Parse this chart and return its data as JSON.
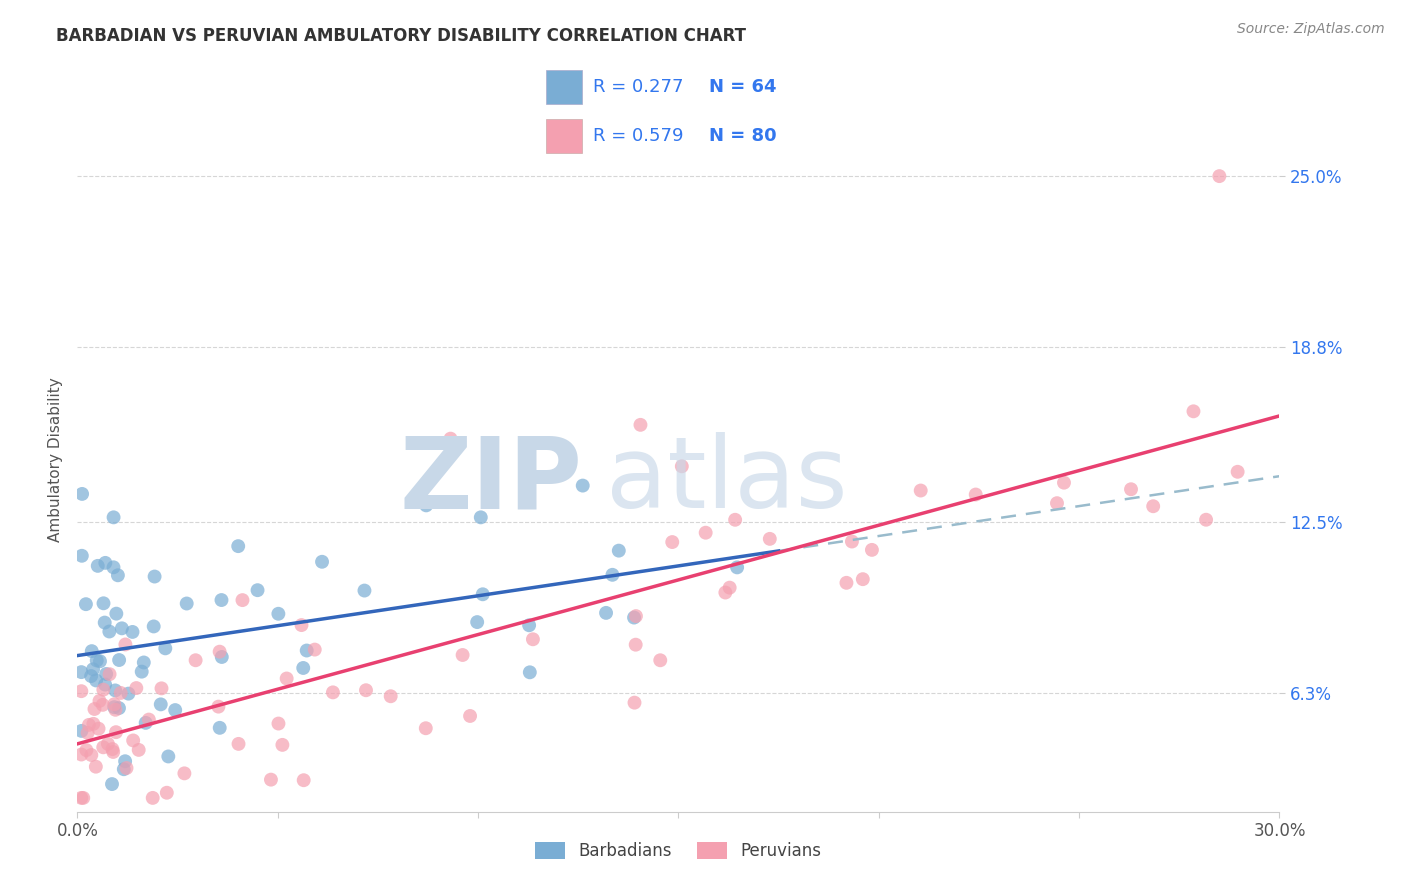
{
  "title": "BARBADIAN VS PERUVIAN AMBULATORY DISABILITY CORRELATION CHART",
  "source": "Source: ZipAtlas.com",
  "ylabel_label": "Ambulatory Disability",
  "barbadian_color": "#7aadd4",
  "peruvian_color": "#f4a0b0",
  "barbadian_line_color": "#3366bb",
  "peruvian_line_color": "#e84070",
  "dashed_line_color": "#99bbcc",
  "legend_text_color": "#3377ee",
  "watermark_color": "#c8d8e8",
  "background_color": "#ffffff",
  "grid_color": "#cccccc",
  "xmin": 0.0,
  "xmax": 0.3,
  "ymin": 0.02,
  "ymax": 0.275,
  "ytick_vals": [
    0.063,
    0.125,
    0.188,
    0.25
  ],
  "ytick_labels": [
    "6.3%",
    "12.5%",
    "18.8%",
    "25.0%"
  ],
  "xtick_vals": [
    0.0,
    0.3
  ],
  "xtick_labels": [
    "0.0%",
    "30.0%"
  ]
}
